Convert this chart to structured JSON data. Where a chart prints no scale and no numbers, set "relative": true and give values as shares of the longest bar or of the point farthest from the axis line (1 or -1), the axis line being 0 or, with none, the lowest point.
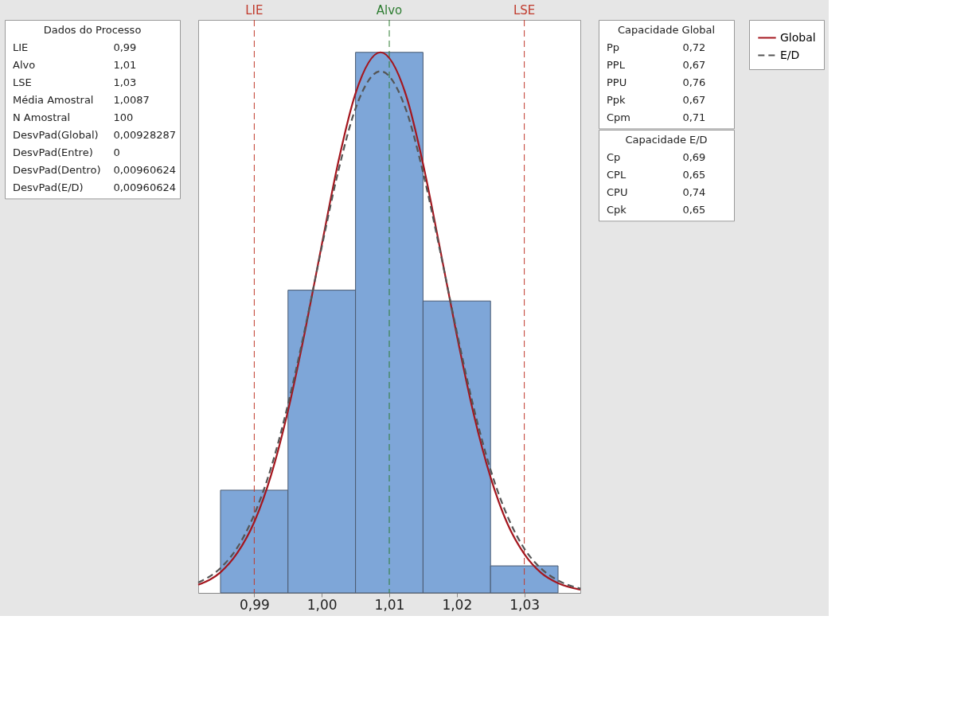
{
  "chart_data": [
    {
      "type": "other",
      "title": "Dados do Processo",
      "annotations": [
        "LIE 0,99",
        "Alvo 1,01",
        "LSE 1,03",
        "Média Amostral 1,0087",
        "N Amostral 100",
        "DesvPad(Global) 0,00928287",
        "DesvPad(Entre) 0",
        "DesvPad(Dentro) 0,00960624",
        "DesvPad(E/D) 0,00960624"
      ]
    },
    {
      "type": "histogram",
      "relative": true,
      "bins": [
        0.985,
        0.995,
        1.005,
        1.015,
        1.025,
        1.035
      ],
      "values": [
        0.19,
        0.56,
        1.0,
        0.54,
        0.05
      ],
      "color": "#7ea6d8",
      "xlim": [
        0.9817,
        1.0383
      ],
      "xticks": [
        {
          "value": 0.99,
          "label": "0,99"
        },
        {
          "value": 1.0,
          "label": "1,00"
        },
        {
          "value": 1.01,
          "label": "1,01"
        },
        {
          "value": 1.02,
          "label": "1,02"
        },
        {
          "value": 1.03,
          "label": "1,03"
        }
      ],
      "series": [
        {
          "name": "Global",
          "type": "line",
          "color": "#a4161e",
          "line_style": "solid",
          "x": [
            0.9817,
            0.985,
            0.9875,
            0.99,
            0.9925,
            0.995,
            0.9975,
            1.0,
            1.0025,
            1.005,
            1.0087,
            1.0125,
            1.015,
            1.0175,
            1.02,
            1.0225,
            1.025,
            1.0275,
            1.03,
            1.0325,
            1.035,
            1.0383
          ],
          "values": [
            0.015,
            0.038,
            0.074,
            0.131,
            0.218,
            0.337,
            0.483,
            0.644,
            0.8,
            0.924,
            1.0,
            0.92,
            0.794,
            0.638,
            0.477,
            0.331,
            0.214,
            0.128,
            0.072,
            0.037,
            0.018,
            0.006
          ]
        },
        {
          "name": "E/D",
          "type": "line",
          "color": "#555555",
          "line_style": "dashed",
          "x": [
            0.9817,
            0.985,
            0.9875,
            0.99,
            0.9925,
            0.995,
            0.9975,
            1.0,
            1.0025,
            1.005,
            1.0087,
            1.0125,
            1.015,
            1.0175,
            1.02,
            1.0225,
            1.025,
            1.0275,
            1.03,
            1.0325,
            1.035,
            1.0383
          ],
          "values": [
            0.019,
            0.046,
            0.084,
            0.145,
            0.232,
            0.349,
            0.488,
            0.64,
            0.783,
            0.896,
            0.965,
            0.893,
            0.778,
            0.634,
            0.483,
            0.343,
            0.228,
            0.142,
            0.082,
            0.045,
            0.023,
            0.008
          ]
        }
      ],
      "ref_lines": [
        {
          "axis": "x",
          "value": 0.99,
          "label": "LIE",
          "color": "#c0392b",
          "line_style": "dashed"
        },
        {
          "axis": "x",
          "value": 1.01,
          "label": "Alvo",
          "color": "#2e7d32",
          "line_style": "dashed"
        },
        {
          "axis": "x",
          "value": 1.03,
          "label": "LSE",
          "color": "#c0392b",
          "line_style": "dashed"
        }
      ],
      "legend": "right"
    },
    {
      "type": "other",
      "title": "Capacidade Global",
      "annotations": [
        "Pp 0,72",
        "PPL 0,67",
        "PPU 0,76",
        "Ppk 0,67",
        "Cpm 0,71"
      ]
    },
    {
      "type": "other",
      "title": "Capacidade E/D",
      "annotations": [
        "Cp 0,69",
        "CPL 0,65",
        "CPU 0,74",
        "Cpk 0,65"
      ]
    }
  ]
}
